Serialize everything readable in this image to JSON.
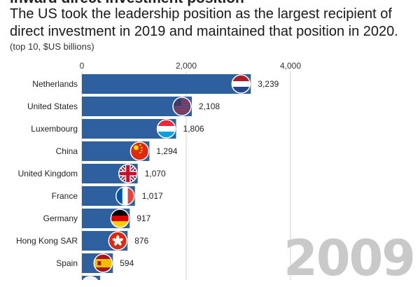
{
  "header": {
    "title": "inward direct investment position",
    "subtitle": "The US took the leadership position as the largest recipient of direct investment in 2019 and maintained that position in 2020.",
    "units": "(top 10, $US billions)",
    "year": "2009"
  },
  "chart_data": {
    "type": "bar",
    "orientation": "horizontal",
    "title": "The US took the leadership position as the largest recipient of direct investment in 2019 and maintained that position in 2020.",
    "xlabel": "(top 10, $US billions)",
    "ylabel": "",
    "xlim": [
      0,
      4000
    ],
    "ticks": [
      "0",
      "2,000",
      "4,000"
    ],
    "tick_values": [
      0,
      2000,
      4000
    ],
    "categories": [
      "Netherlands",
      "United States",
      "Luxembourg",
      "China",
      "United Kingdom",
      "France",
      "Germany",
      "Hong Kong SAR",
      "Spain",
      ""
    ],
    "values": [
      3239,
      2108,
      1806,
      1294,
      1070,
      1017,
      917,
      876,
      594,
      350
    ],
    "labels": [
      "3,239",
      "2,108",
      "1,806",
      "1,294",
      "1,070",
      "1,017",
      "917",
      "876",
      "594",
      ""
    ],
    "flags": [
      "netherlands-flag",
      "united-states-flag",
      "luxembourg-flag",
      "china-flag",
      "united-kingdom-flag",
      "france-flag",
      "germany-flag",
      "hong-kong-flag",
      "spain-flag",
      "unknown-flag"
    ],
    "bar_color": "#2e5f9e",
    "grid": true
  }
}
